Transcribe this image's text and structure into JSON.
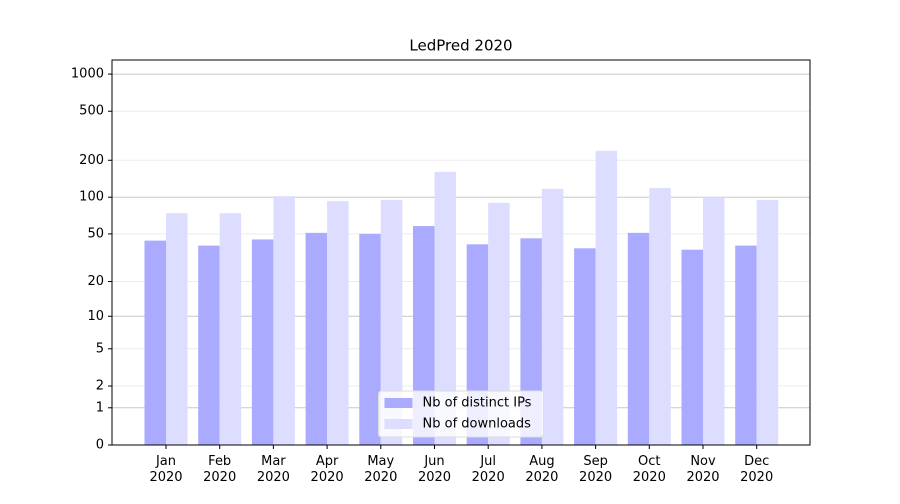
{
  "chart_data": {
    "type": "bar",
    "title": "LedPred 2020",
    "categories": [
      "Jan 2020",
      "Feb 2020",
      "Mar 2020",
      "Apr 2020",
      "May 2020",
      "Jun 2020",
      "Jul 2020",
      "Aug 2020",
      "Sep 2020",
      "Oct 2020",
      "Nov 2020",
      "Dec 2020"
    ],
    "series": [
      {
        "name": "Nb of distinct IPs",
        "color": "#aaaaff",
        "values": [
          44,
          40,
          45,
          51,
          50,
          58,
          41,
          46,
          38,
          51,
          37,
          40
        ]
      },
      {
        "name": "Nb of downloads",
        "color": "#ddddff",
        "values": [
          74,
          74,
          102,
          93,
          95,
          161,
          90,
          117,
          239,
          119,
          100,
          95
        ]
      }
    ],
    "yscale": "log1p",
    "ylim": [
      0,
      1300
    ],
    "yticks": [
      0,
      1,
      2,
      5,
      10,
      20,
      50,
      100,
      200,
      500,
      1000
    ],
    "grid": true,
    "legend": "lower center"
  }
}
